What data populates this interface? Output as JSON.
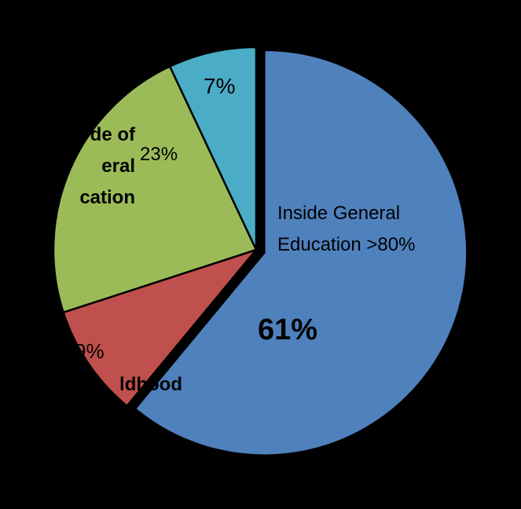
{
  "chart_data": {
    "type": "pie",
    "categories": [
      "Inside General Education >80%",
      "ldhood",
      "de of\neral\ncation",
      null
    ],
    "values": [
      61,
      9,
      23,
      7
    ],
    "value_labels": [
      "61%",
      "9%",
      "23%",
      "7%"
    ],
    "colors": [
      "#4f81bd",
      "#c0504d",
      "#9bbb59",
      "#4bacc6"
    ],
    "background": "#000000"
  }
}
